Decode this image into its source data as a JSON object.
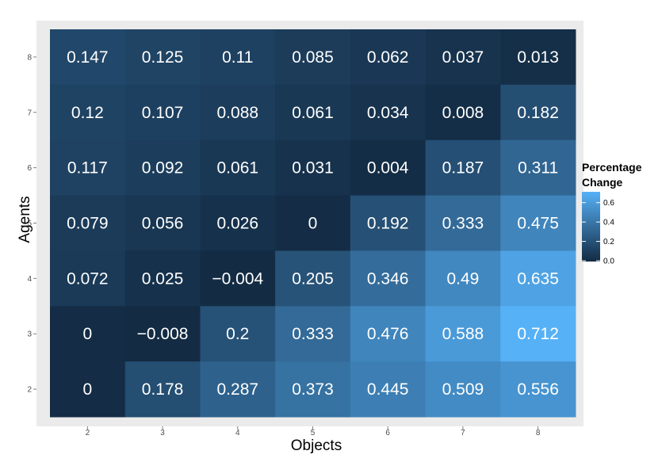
{
  "chart_data": {
    "type": "heatmap",
    "title": "",
    "xlabel": "Objects",
    "ylabel": "Agents",
    "x_categories": [
      "2",
      "3",
      "4",
      "5",
      "6",
      "7",
      "8"
    ],
    "y_categories": [
      "2",
      "3",
      "4",
      "5",
      "6",
      "7",
      "8"
    ],
    "cells": [
      {
        "x": "2",
        "y": "8",
        "value": 0.147,
        "label": "0.147"
      },
      {
        "x": "3",
        "y": "8",
        "value": 0.125,
        "label": "0.125"
      },
      {
        "x": "4",
        "y": "8",
        "value": 0.11,
        "label": "0.11"
      },
      {
        "x": "5",
        "y": "8",
        "value": 0.085,
        "label": "0.085"
      },
      {
        "x": "6",
        "y": "8",
        "value": 0.062,
        "label": "0.062"
      },
      {
        "x": "7",
        "y": "8",
        "value": 0.037,
        "label": "0.037"
      },
      {
        "x": "8",
        "y": "8",
        "value": 0.013,
        "label": "0.013"
      },
      {
        "x": "2",
        "y": "7",
        "value": 0.12,
        "label": "0.12"
      },
      {
        "x": "3",
        "y": "7",
        "value": 0.107,
        "label": "0.107"
      },
      {
        "x": "4",
        "y": "7",
        "value": 0.088,
        "label": "0.088"
      },
      {
        "x": "5",
        "y": "7",
        "value": 0.061,
        "label": "0.061"
      },
      {
        "x": "6",
        "y": "7",
        "value": 0.034,
        "label": "0.034"
      },
      {
        "x": "7",
        "y": "7",
        "value": 0.008,
        "label": "0.008"
      },
      {
        "x": "8",
        "y": "7",
        "value": 0.182,
        "label": "0.182"
      },
      {
        "x": "2",
        "y": "6",
        "value": 0.117,
        "label": "0.117"
      },
      {
        "x": "3",
        "y": "6",
        "value": 0.092,
        "label": "0.092"
      },
      {
        "x": "4",
        "y": "6",
        "value": 0.061,
        "label": "0.061"
      },
      {
        "x": "5",
        "y": "6",
        "value": 0.031,
        "label": "0.031"
      },
      {
        "x": "6",
        "y": "6",
        "value": 0.004,
        "label": "0.004"
      },
      {
        "x": "7",
        "y": "6",
        "value": 0.187,
        "label": "0.187"
      },
      {
        "x": "8",
        "y": "6",
        "value": 0.311,
        "label": "0.311"
      },
      {
        "x": "2",
        "y": "5",
        "value": 0.079,
        "label": "0.079"
      },
      {
        "x": "3",
        "y": "5",
        "value": 0.056,
        "label": "0.056"
      },
      {
        "x": "4",
        "y": "5",
        "value": 0.026,
        "label": "0.026"
      },
      {
        "x": "5",
        "y": "5",
        "value": 0,
        "label": "0"
      },
      {
        "x": "6",
        "y": "5",
        "value": 0.192,
        "label": "0.192"
      },
      {
        "x": "7",
        "y": "5",
        "value": 0.333,
        "label": "0.333"
      },
      {
        "x": "8",
        "y": "5",
        "value": 0.475,
        "label": "0.475"
      },
      {
        "x": "2",
        "y": "4",
        "value": 0.072,
        "label": "0.072"
      },
      {
        "x": "3",
        "y": "4",
        "value": 0.025,
        "label": "0.025"
      },
      {
        "x": "4",
        "y": "4",
        "value": -0.004,
        "label": "−0.004"
      },
      {
        "x": "5",
        "y": "4",
        "value": 0.205,
        "label": "0.205"
      },
      {
        "x": "6",
        "y": "4",
        "value": 0.346,
        "label": "0.346"
      },
      {
        "x": "7",
        "y": "4",
        "value": 0.49,
        "label": "0.49"
      },
      {
        "x": "8",
        "y": "4",
        "value": 0.635,
        "label": "0.635"
      },
      {
        "x": "2",
        "y": "3",
        "value": 0,
        "label": "0"
      },
      {
        "x": "3",
        "y": "3",
        "value": -0.008,
        "label": "−0.008"
      },
      {
        "x": "4",
        "y": "3",
        "value": 0.2,
        "label": "0.2"
      },
      {
        "x": "5",
        "y": "3",
        "value": 0.333,
        "label": "0.333"
      },
      {
        "x": "6",
        "y": "3",
        "value": 0.476,
        "label": "0.476"
      },
      {
        "x": "7",
        "y": "3",
        "value": 0.588,
        "label": "0.588"
      },
      {
        "x": "8",
        "y": "3",
        "value": 0.712,
        "label": "0.712"
      },
      {
        "x": "2",
        "y": "2",
        "value": 0,
        "label": "0"
      },
      {
        "x": "3",
        "y": "2",
        "value": 0.178,
        "label": "0.178"
      },
      {
        "x": "4",
        "y": "2",
        "value": 0.287,
        "label": "0.287"
      },
      {
        "x": "5",
        "y": "2",
        "value": 0.373,
        "label": "0.373"
      },
      {
        "x": "6",
        "y": "2",
        "value": 0.445,
        "label": "0.445"
      },
      {
        "x": "7",
        "y": "2",
        "value": 0.509,
        "label": "0.509"
      },
      {
        "x": "8",
        "y": "2",
        "value": 0.556,
        "label": "0.556"
      }
    ],
    "legend": {
      "title_line1": "Percentage",
      "title_line2": "Change",
      "ticks": [
        "0.0",
        "0.2",
        "0.4",
        "0.6"
      ],
      "tick_values": [
        0.0,
        0.2,
        0.4,
        0.6
      ],
      "range": [
        -0.008,
        0.712
      ],
      "low_color": "#132b43",
      "high_color": "#56b1f7",
      "placement": "right"
    },
    "panel_background": "#ebebeb",
    "grid": false
  }
}
